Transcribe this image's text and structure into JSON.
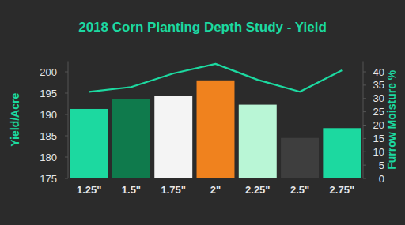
{
  "chart_data": {
    "type": "bar",
    "title": "2018 Corn Planting Depth Study - Yield",
    "ylabel": "Yield/Acre",
    "y2label": "Furrow Moisture %",
    "categories": [
      "1.25\"",
      "1.5\"",
      "1.75\"",
      "2\"",
      "2.25\"",
      "2.5\"",
      "2.75\""
    ],
    "series": [
      {
        "type": "bar",
        "colors": [
          "#1cd9a0",
          "#0f7a4c",
          "#f4f4f4",
          "#f0821e",
          "#b9f6d6",
          "#3e3e3e",
          "#1cd9a0"
        ],
        "values": [
          191.3,
          193.7,
          194.4,
          198,
          192.3,
          184.5,
          186.8
        ]
      },
      {
        "type": "line",
        "axis": "y2",
        "color": "#1cd9a0",
        "values": [
          32.5,
          34.3,
          39.4,
          43,
          37,
          32.5,
          40.6
        ]
      }
    ],
    "ylim": [
      175,
      202.5
    ],
    "yticks": [
      175,
      180,
      185,
      190,
      195,
      200
    ],
    "y2lim": [
      0,
      44
    ],
    "y2ticks": [
      0,
      5,
      10,
      15,
      20,
      25,
      30,
      35,
      40
    ],
    "grid": false
  }
}
